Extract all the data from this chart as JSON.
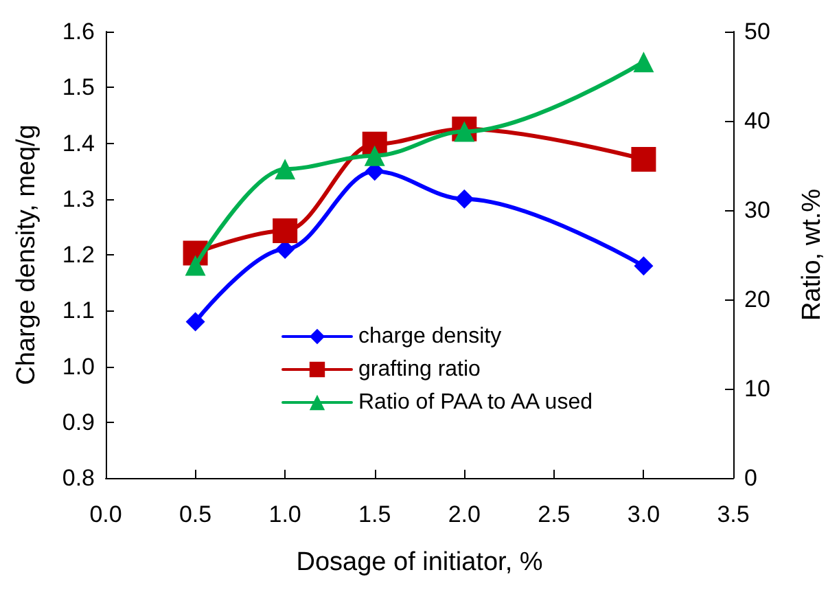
{
  "chart_data": {
    "type": "line",
    "xlabel": "Dosage of initiator, %",
    "ylabel": "Charge density, meq/g",
    "y2label": "Ratio, wt.%",
    "x": [
      0.5,
      1.0,
      1.5,
      2.0,
      3.0
    ],
    "series": [
      {
        "name": "charge density",
        "color": "#0000ff",
        "marker": "diamond",
        "values": [
          1.08,
          1.21,
          1.35,
          1.3,
          1.18
        ]
      },
      {
        "name": "grafting ratio",
        "color": "#c00000",
        "marker": "square",
        "axis": "y2",
        "values": [
          25.2,
          27.7,
          37.4,
          39.1,
          35.7
        ]
      },
      {
        "name": "Ratio of PAA to AA used",
        "color": "#00b050",
        "marker": "triangle",
        "axis": "y2",
        "values": [
          23.8,
          34.6,
          36.1,
          38.8,
          46.6
        ]
      }
    ],
    "xlim": [
      0.0,
      3.5
    ],
    "xticks": [
      {
        "value": 0,
        "label": "0.0"
      },
      0.5,
      {
        "value": 1,
        "label": "1.0"
      },
      1.5,
      {
        "value": 2,
        "label": "2.0"
      },
      2.5,
      {
        "value": 3,
        "label": "3.0"
      },
      3.5
    ],
    "ylim": [
      0.8,
      1.6
    ],
    "yticks": [
      0.8,
      0.9,
      {
        "value": 1,
        "label": "1.0"
      },
      1.1,
      1.2,
      1.3,
      1.4,
      1.5,
      1.6
    ],
    "y2lim": [
      0,
      50
    ],
    "y2ticks": [
      0,
      10,
      20,
      30,
      40,
      50
    ],
    "grid": false,
    "legend": "bottom",
    "line_style": "solid"
  }
}
